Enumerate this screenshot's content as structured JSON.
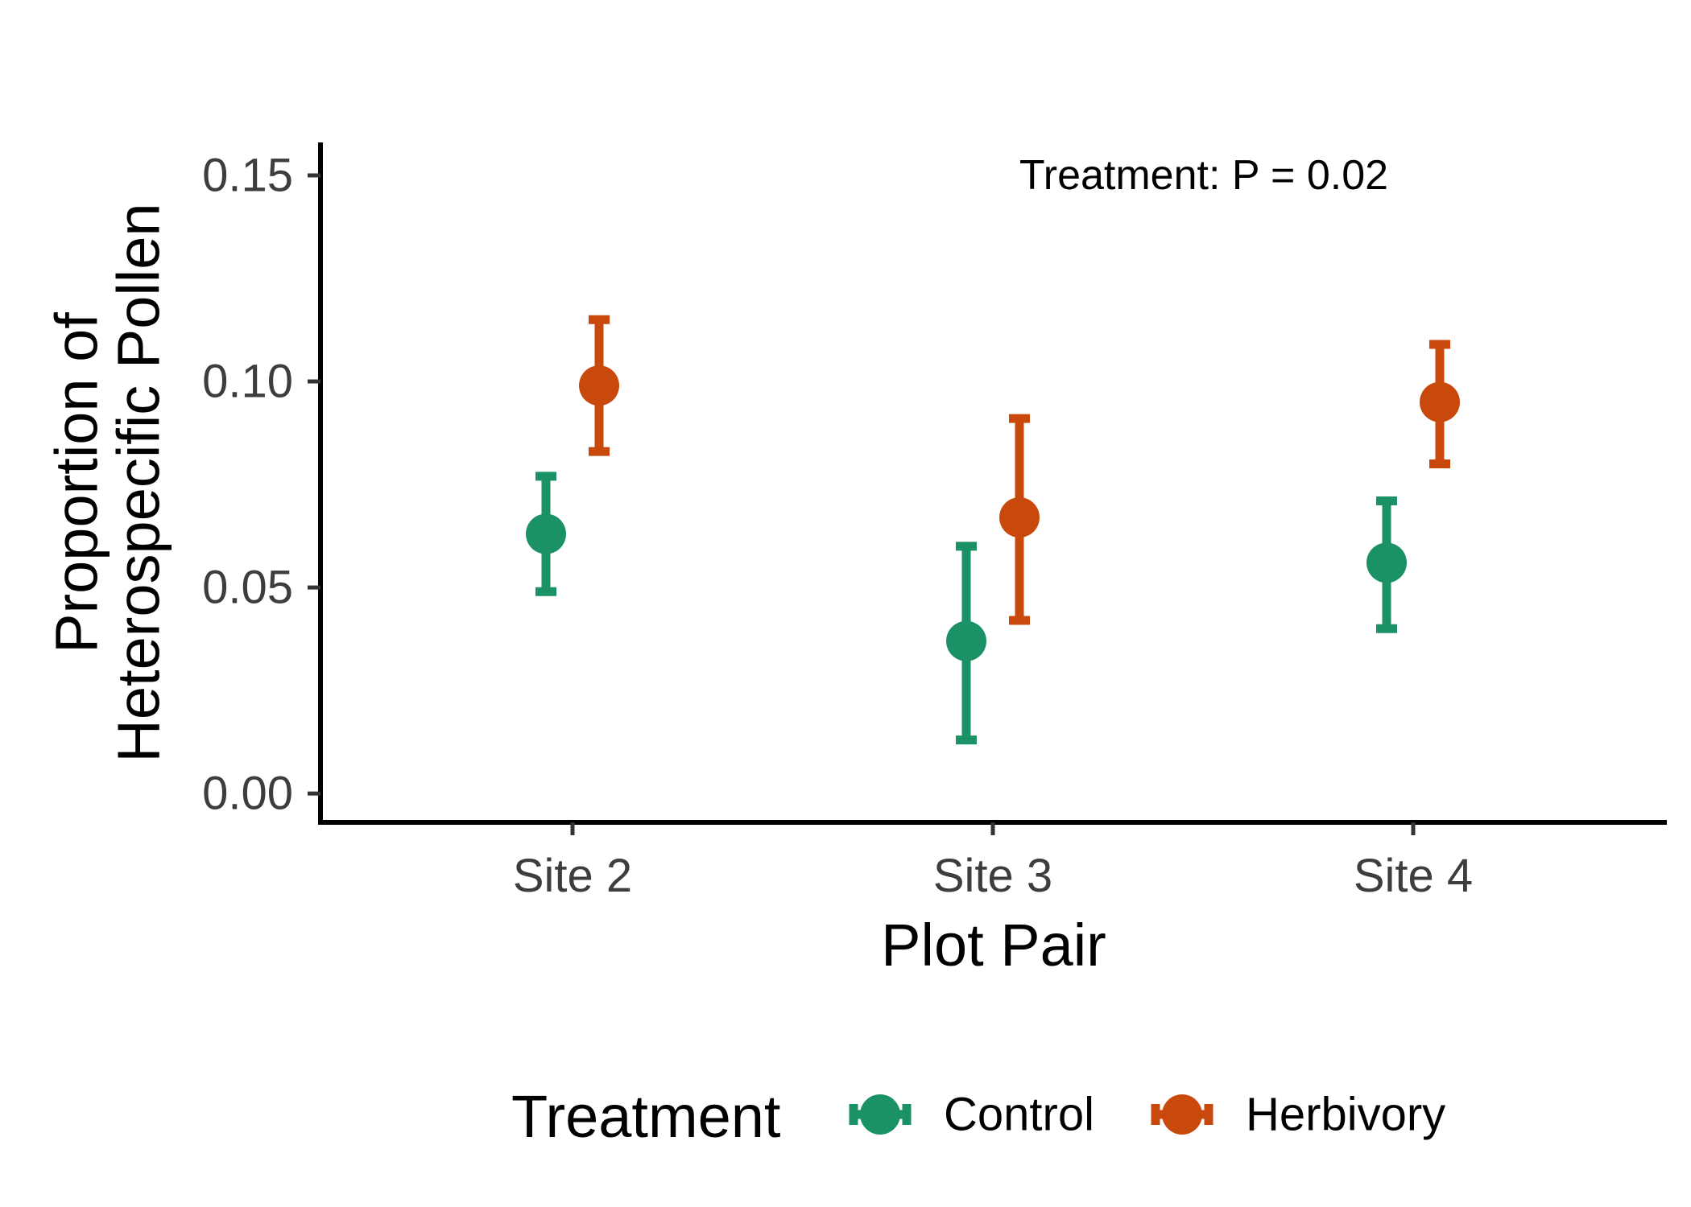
{
  "chart_data": {
    "type": "scatter",
    "title": "",
    "xlabel": "Plot Pair",
    "ylabel_lines": [
      "Proportion of",
      "Heterospecific Pollen"
    ],
    "categories": [
      "Site 2",
      "Site 3",
      "Site 4"
    ],
    "ylim": [
      -0.007,
      0.158
    ],
    "yticks": [
      0.0,
      0.05,
      0.1,
      0.15
    ],
    "ytick_labels": [
      "0.00",
      "0.05",
      "0.10",
      "0.15"
    ],
    "grid": false,
    "annotation": "Treatment: P = 0.02",
    "legend": {
      "title": "Treatment",
      "position": "bottom"
    },
    "series": [
      {
        "name": "Control",
        "color": "#1b9166",
        "values": [
          0.063,
          0.037,
          0.056
        ],
        "lower": [
          0.049,
          0.013,
          0.04
        ],
        "upper": [
          0.077,
          0.06,
          0.071
        ]
      },
      {
        "name": "Herbivory",
        "color": "#c9490c",
        "values": [
          0.099,
          0.067,
          0.095
        ],
        "lower": [
          0.083,
          0.042,
          0.08
        ],
        "upper": [
          0.115,
          0.091,
          0.109
        ]
      }
    ]
  }
}
